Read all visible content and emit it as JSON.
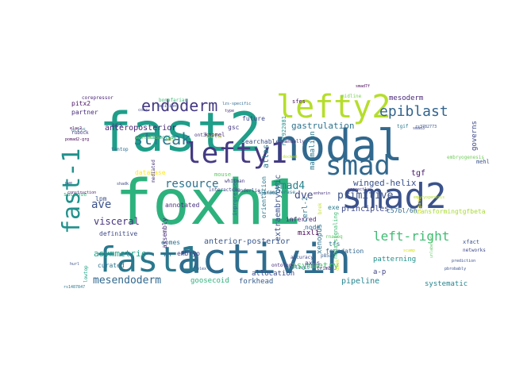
{
  "cloud": {
    "words": [
      {
        "text": "foxh1",
        "color": "#2db27d"
      },
      {
        "text": "fast2",
        "color": "#1f9e89"
      },
      {
        "text": "nodal",
        "color": "#31688e"
      },
      {
        "text": "activin",
        "color": "#2f6c8e"
      },
      {
        "text": "smad2",
        "color": "#3b528b"
      },
      {
        "text": "fast1",
        "color": "#2a788e"
      },
      {
        "text": "lefty2",
        "color": "#b5de2b"
      },
      {
        "text": "lefty1",
        "color": "#443a83"
      },
      {
        "text": "fast-1",
        "color": "#21918c"
      },
      {
        "text": "smad",
        "color": "#31688e"
      },
      {
        "text": "endoderm",
        "color": "#443983"
      },
      {
        "text": "streak",
        "color": "#2a788e"
      },
      {
        "text": "epiblast",
        "color": "#32648e"
      },
      {
        "text": "left-right",
        "color": "#3fbc73"
      },
      {
        "text": "mesendoderm",
        "color": "#31688e"
      },
      {
        "text": "ave",
        "color": "#3b528b"
      },
      {
        "text": "resource",
        "color": "#2c728e"
      },
      {
        "text": "smad4",
        "color": "#26828e"
      },
      {
        "text": "primitive",
        "color": "#3b528b"
      },
      {
        "text": "winged-helix",
        "color": "#3b528b"
      },
      {
        "text": "dve",
        "color": "#3e4989"
      },
      {
        "text": "visceral",
        "color": "#46337e"
      },
      {
        "text": "gastrulation",
        "color": "#2c728e"
      },
      {
        "text": "asymmetric",
        "color": "#20a386"
      },
      {
        "text": "asymmetry",
        "color": "#4ac16d"
      },
      {
        "text": "tgf",
        "color": "#48186a"
      },
      {
        "text": "principles",
        "color": "#3e4a89"
      },
      {
        "text": "pipeline",
        "color": "#25848e"
      },
      {
        "text": "anterior-posterior",
        "color": "#38588c"
      },
      {
        "text": "anteroposterior",
        "color": "#482576"
      },
      {
        "text": "goosecoid",
        "color": "#2db27d"
      },
      {
        "text": "forkhead",
        "color": "#365c8d"
      },
      {
        "text": "extraembryonic",
        "color": "#3b528b"
      },
      {
        "text": "inferred",
        "color": "#482677"
      },
      {
        "text": "mixl1",
        "color": "#440154"
      },
      {
        "text": "embryo",
        "color": "#433e85"
      },
      {
        "text": "curated",
        "color": "#2c728e"
      },
      {
        "text": "definitive",
        "color": "#3e4989"
      },
      {
        "text": "annotated",
        "color": "#46307e"
      },
      {
        "text": "lpm",
        "color": "#3b528b"
      },
      {
        "text": "a-p",
        "color": "#414487"
      },
      {
        "text": "patterning",
        "color": "#21918c"
      },
      {
        "text": "systematic",
        "color": "#25848e"
      },
      {
        "text": "xenopus",
        "color": "#2c728e"
      },
      {
        "text": "atlas",
        "color": "#2a788e"
      },
      {
        "text": "mammalian",
        "color": "#2a788e"
      },
      {
        "text": "mesoderm",
        "color": "#482878"
      },
      {
        "text": "governs",
        "color": "#3e4989"
      },
      {
        "text": "transformingtgfbeta",
        "color": "#a8db34"
      },
      {
        "text": "c57bl/6n",
        "color": "#31688e"
      },
      {
        "text": "eomes",
        "color": "#2c728e"
      },
      {
        "text": "wh",
        "color": "#31688e"
      },
      {
        "text": "allocation",
        "color": "#3e4989"
      },
      {
        "text": "node",
        "color": "#32648e"
      },
      {
        "text": "tfs",
        "color": "#2c728e"
      },
      {
        "text": "axis",
        "color": "#3e4989"
      },
      {
        "text": "foundation",
        "color": "#31688e"
      },
      {
        "text": "cerl-2",
        "color": "#2d708e"
      },
      {
        "text": "exe",
        "color": "#287c8e"
      },
      {
        "text": "orientation",
        "color": "#2a788e"
      },
      {
        "text": "future",
        "color": "#3e4989"
      },
      {
        "text": "searchable",
        "color": "#3b528b"
      },
      {
        "text": "gsc",
        "color": "#443983"
      },
      {
        "text": "beta",
        "color": "#c2df23"
      },
      {
        "text": "pitx2",
        "color": "#471063"
      },
      {
        "text": "partner",
        "color": "#472d7b"
      },
      {
        "text": "aps",
        "color": "#3e4989"
      },
      {
        "text": "database",
        "color": "#fde725"
      },
      {
        "text": "assembly",
        "color": "#482878"
      },
      {
        "text": "xfact",
        "color": "#3b528b"
      },
      {
        "text": "mouse",
        "color": "#5ec962"
      },
      {
        "text": "nodalsignaling",
        "color": "#3fbc73"
      },
      {
        "text": "embryogenesis",
        "color": "#6ece58"
      },
      {
        "text": "sfes",
        "color": "#471365"
      },
      {
        "text": "midline",
        "color": "#7ad151"
      },
      {
        "text": "knomel",
        "color": "#472a7a"
      },
      {
        "text": "asd",
        "color": "#d2e21b"
      },
      {
        "text": "ont3",
        "color": "#46337e"
      },
      {
        "text": "manually",
        "color": "#46337e"
      },
      {
        "text": "sucrose",
        "color": "#2db27d"
      },
      {
        "text": "oct25",
        "color": "#2c728e"
      },
      {
        "text": "elac2",
        "color": "#450457"
      },
      {
        "text": "pomad2-grg",
        "color": "#440154"
      },
      {
        "text": "rubock",
        "color": "#443983"
      },
      {
        "text": "corepressor",
        "color": "#482475"
      },
      {
        "text": "nucleotide",
        "color": "#22a884"
      },
      {
        "text": "evolution",
        "color": "#5ec962"
      },
      {
        "text": "lzs-specific",
        "color": "#306a8e"
      },
      {
        "text": "pwe",
        "color": "#404688"
      },
      {
        "text": "construction",
        "color": "#48186a"
      },
      {
        "text": "tantop",
        "color": "#2f6c8e"
      },
      {
        "text": "shadk",
        "color": "#3e4989"
      },
      {
        "text": "whitman",
        "color": "#453781"
      },
      {
        "text": "interactome",
        "color": "#3e4989"
      },
      {
        "text": "underlie",
        "color": "#3e4989"
      },
      {
        "text": "genome",
        "color": "#2c728e"
      },
      {
        "text": "rs7922081",
        "color": "#21918c"
      },
      {
        "text": "s-transferase",
        "color": "#2c728e"
      },
      {
        "text": "docked",
        "color": "#b5de2b"
      },
      {
        "text": "correctly",
        "color": "#443983"
      },
      {
        "text": "embryogenesis",
        "color": "#b5de2b"
      },
      {
        "text": "mehl",
        "color": "#3b528b"
      },
      {
        "text": "networks",
        "color": "#3e4989"
      },
      {
        "text": "tgif",
        "color": "#2a788e"
      },
      {
        "text": "smad3",
        "color": "#3e4989"
      },
      {
        "text": "rs3782773",
        "color": "#39558c"
      },
      {
        "text": "p85a",
        "color": "#365c8d"
      },
      {
        "text": "hurl",
        "color": "#3b528b"
      },
      {
        "text": "ontology",
        "color": "#472d7b"
      },
      {
        "text": "earliest",
        "color": "#2c728e"
      },
      {
        "text": "accuracy",
        "color": "#3e4989"
      },
      {
        "text": "trimb",
        "color": "#482475"
      },
      {
        "text": "pbrobably",
        "color": "#3b528b"
      },
      {
        "text": "rs1487847",
        "color": "#2a788e"
      },
      {
        "text": "scamp",
        "color": "#d8e219"
      },
      {
        "text": "rnaseq",
        "color": "#5ec962"
      },
      {
        "text": "prediction",
        "color": "#3b528b"
      },
      {
        "text": "unlabeled",
        "color": "#5ec962"
      },
      {
        "text": "inprgressed",
        "color": "#31688e"
      },
      {
        "text": "lowtop",
        "color": "#20a386"
      },
      {
        "text": "dwok",
        "color": "#d2e21b"
      },
      {
        "text": "brek",
        "color": "#c0df25"
      },
      {
        "text": "bonefarian",
        "color": "#3fbc73"
      },
      {
        "text": "mediated",
        "color": "#46337e"
      },
      {
        "text": "ligand",
        "color": "#e5e419"
      },
      {
        "text": "decisions",
        "color": "#3b528b"
      },
      {
        "text": "coor",
        "color": "#3e4989"
      },
      {
        "text": "type",
        "color": "#472d7b"
      },
      {
        "text": "plex",
        "color": "#3b528b"
      },
      {
        "text": "smad7f",
        "color": "#440154"
      },
      {
        "text": "enharin",
        "color": "#46337e"
      }
    ]
  }
}
